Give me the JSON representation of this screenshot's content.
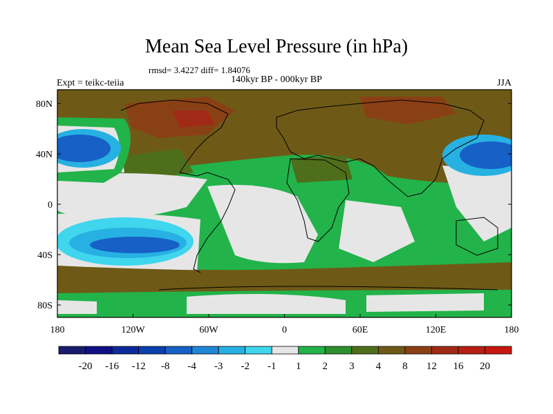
{
  "title": "Mean Sea Level Pressure (in hPa)",
  "stats_text": "rmsd= 3.4227 diff= 1.84076",
  "subtitle": "140kyr BP - 000kyr BP",
  "left_label": "Expt = teikc-teiia",
  "right_label": "JJA",
  "lat_ticks": [
    "80N",
    "40N",
    "0",
    "40S",
    "80S"
  ],
  "lon_ticks": [
    "180",
    "120W",
    "60W",
    "0",
    "60E",
    "120E",
    "180"
  ],
  "colorbar": {
    "labels": [
      "-20",
      "-16",
      "-12",
      "-8",
      "-4",
      "-3",
      "-2",
      "-1",
      "1",
      "2",
      "3",
      "4",
      "8",
      "12",
      "16",
      "20"
    ],
    "colors": [
      "#1a1a6e",
      "#101085",
      "#0c2a9a",
      "#0a3fae",
      "#1660c6",
      "#1f86d6",
      "#27b1e2",
      "#3fd6ee",
      "#e6e6e6",
      "#22b34a",
      "#2e8f2e",
      "#4f6e1b",
      "#6e5a16",
      "#8a4015",
      "#a02a15",
      "#b81e14",
      "#c8170f"
    ]
  },
  "colors": {
    "ocean_neutral": "#e6e6e6",
    "brown": "#6e5a16",
    "dark_green": "#4f6e1b",
    "green": "#22b34a",
    "blue": "#1660c6",
    "red": "#a02a15"
  }
}
